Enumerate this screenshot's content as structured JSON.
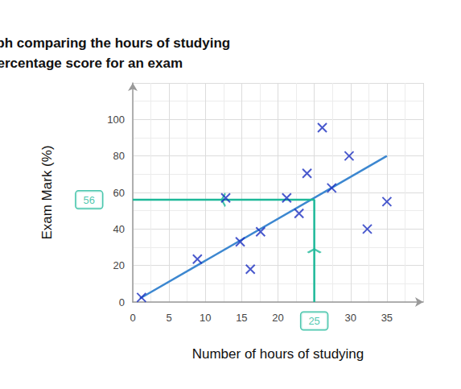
{
  "chart_data": {
    "type": "scatter",
    "title": "A scatter graph comparing the hours of studying\nand percentage score for an exam",
    "x_label": "Number of hours of studying",
    "y_label": "Exam Mark (%)",
    "x": [
      1.2,
      8.9,
      12.8,
      14.8,
      16.2,
      17.6,
      21.2,
      22.9,
      24,
      26.1,
      27.4,
      29.8,
      32.3,
      35
    ],
    "values": [
      2.5,
      23.5,
      57,
      33,
      18,
      38.5,
      57,
      48.5,
      70.5,
      95.5,
      62.5,
      80,
      40,
      55
    ],
    "color": "#1b2fc0",
    "marker": "x",
    "xlim": [
      0,
      40
    ],
    "xticks": [
      0,
      5,
      10,
      15,
      20,
      25,
      30,
      35
    ],
    "ylim": [
      0,
      120
    ],
    "yticks": [
      0,
      20,
      40,
      60,
      80,
      100
    ],
    "grid": true,
    "line_of_best_fit": {
      "x": [
        1,
        35
      ],
      "values": [
        2,
        80
      ],
      "color": "#3c87d0"
    },
    "annotation": {
      "x": 25,
      "y": 56,
      "color": "#1db899"
    }
  }
}
